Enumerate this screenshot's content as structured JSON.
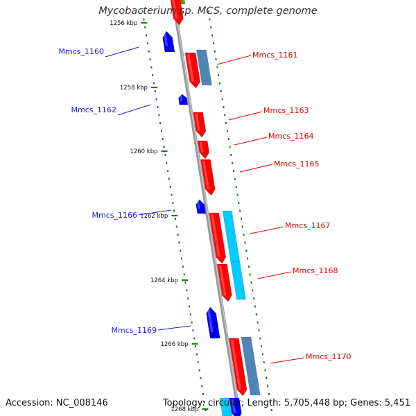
{
  "title": "Mycobacterium sp. MCS, complete genome",
  "footer": {
    "accession": "Accession: NC_008146",
    "stats": "Topology: circular; Length: 5,705,448 bp; Genes: 5,451"
  },
  "colors": {
    "forward": "#ff0000",
    "reverse": "#0000ee",
    "rna": "#4f86b8",
    "cyan": "#00ccff",
    "tick": "#1a7a1a",
    "axis": "#888888"
  },
  "ticks": [
    {
      "label": "1256 kbp",
      "kbp": 1256
    },
    {
      "label": "1258 kbp",
      "kbp": 1258
    },
    {
      "label": "1260 kbp",
      "kbp": 1260
    },
    {
      "label": "1262 kbp",
      "kbp": 1262
    },
    {
      "label": "1264 kbp",
      "kbp": 1264
    },
    {
      "label": "1266 kbp",
      "kbp": 1266
    },
    {
      "label": "1268 kbp",
      "kbp": 1268
    }
  ],
  "genes": [
    {
      "name": "Mmcs_1160",
      "strand": "reverse"
    },
    {
      "name": "Mmcs_1161",
      "strand": "forward"
    },
    {
      "name": "Mmcs_1162",
      "strand": "reverse"
    },
    {
      "name": "Mmcs_1163",
      "strand": "forward"
    },
    {
      "name": "Mmcs_1164",
      "strand": "forward"
    },
    {
      "name": "Mmcs_1165",
      "strand": "forward"
    },
    {
      "name": "Mmcs_1166",
      "strand": "reverse"
    },
    {
      "name": "Mmcs_1167",
      "strand": "forward"
    },
    {
      "name": "Mmcs_1168",
      "strand": "forward"
    },
    {
      "name": "Mmcs_1169",
      "strand": "reverse"
    },
    {
      "name": "Mmcs_1170",
      "strand": "forward"
    }
  ]
}
